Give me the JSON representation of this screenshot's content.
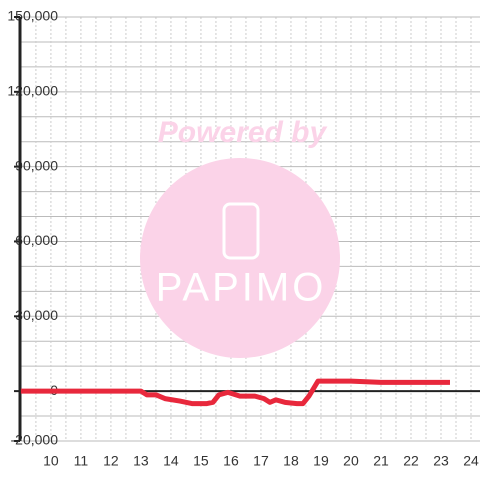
{
  "chart_data": {
    "type": "line",
    "x": [
      9,
      12.8,
      13.0,
      13.2,
      13.5,
      13.8,
      14.3,
      14.7,
      15.2,
      15.4,
      15.6,
      15.9,
      16.3,
      16.8,
      17.1,
      17.3,
      17.5,
      17.8,
      18.2,
      18.4,
      18.6,
      18.9,
      19.3,
      20,
      21,
      22,
      23.3
    ],
    "series": [
      {
        "color": "#e8283c",
        "values": [
          0,
          0,
          0,
          -1500,
          -1500,
          -3000,
          -4000,
          -5000,
          -5000,
          -4500,
          -1500,
          -500,
          -2000,
          -2000,
          -3000,
          -4500,
          -3500,
          -4500,
          -5000,
          -5000,
          -2000,
          4000,
          4000,
          4000,
          3500,
          3500,
          3500
        ]
      }
    ],
    "xlim": [
      8.97,
      24.3
    ],
    "ylim": [
      -20000,
      150000
    ],
    "xticks": [
      10,
      11,
      12,
      13,
      14,
      15,
      16,
      17,
      18,
      19,
      20,
      21,
      22,
      23,
      24
    ],
    "xminor": [
      9.5,
      10.5,
      11.5,
      12.5,
      13.5,
      14.5,
      15.5,
      16.5,
      17.5,
      18.5,
      19.5,
      20.5,
      21.5,
      22.5,
      23.5
    ],
    "yticks": [
      {
        "value": -20000,
        "label": "-20,000"
      },
      0,
      {
        "value": 30000,
        "label": "30,000"
      },
      {
        "value": 60000,
        "label": "60,000"
      },
      {
        "value": 90000,
        "label": "90,000"
      },
      {
        "value": 120000,
        "label": "120,000"
      },
      {
        "value": 150000,
        "label": "150,000"
      }
    ],
    "yminor": [
      -10000,
      10000,
      20000,
      40000,
      50000,
      70000,
      80000,
      100000,
      110000,
      130000,
      140000
    ],
    "grid": true,
    "watermark": [
      "Powered by",
      "PAPIMO"
    ]
  }
}
